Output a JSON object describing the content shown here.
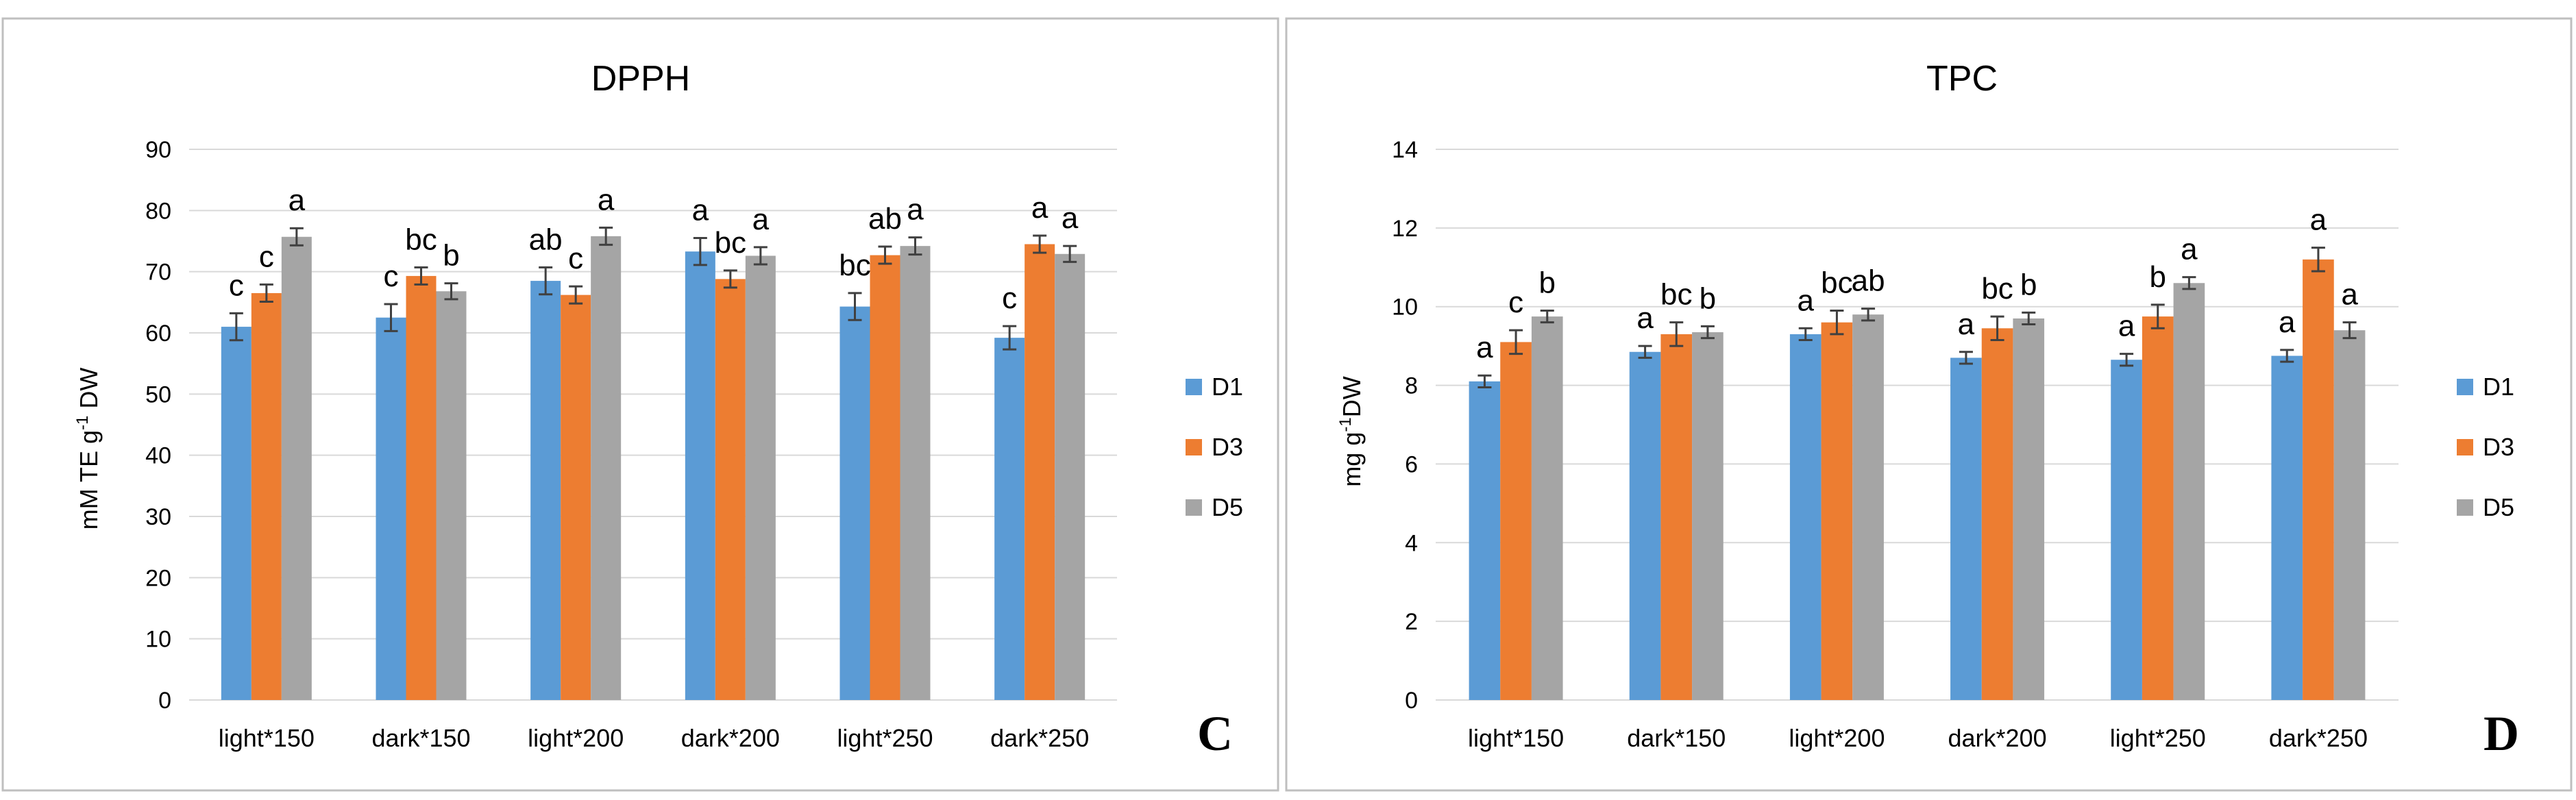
{
  "colors": {
    "D1": "#5b9bd5",
    "D3": "#ed7d31",
    "D5": "#a5a5a5",
    "axis": "#595959",
    "grid": "#d9d9d9",
    "text": "#000000",
    "border": "#bfbfbf",
    "errorbar": "#404040"
  },
  "chart_data": [
    {
      "type": "bar",
      "panel_id": "C",
      "title": "DPPH",
      "ylabel": "mM TE  g",
      "ylabel_sup": "-1",
      "ylabel_tail": " DW",
      "xlabel": "",
      "ylim": [
        0,
        90
      ],
      "ytick_step": 10,
      "yticks": [
        "0",
        "10",
        "20",
        "30",
        "40",
        "50",
        "60",
        "70",
        "80",
        "90"
      ],
      "grid": true,
      "legend_position": "right",
      "categories": [
        "light*150",
        "dark*150",
        "light*200",
        "dark*200",
        "light*250",
        "dark*250"
      ],
      "series": [
        {
          "name": "D1",
          "values": [
            61,
            62.5,
            68.5,
            73.3,
            64.3,
            59.2
          ],
          "errors": [
            2.2,
            2.2,
            2.2,
            2.2,
            2.2,
            1.9
          ],
          "labels": [
            "c",
            "c",
            "ab",
            "a",
            "bc",
            "c"
          ]
        },
        {
          "name": "D3",
          "values": [
            66.5,
            69.3,
            66.2,
            68.8,
            72.7,
            74.5
          ],
          "errors": [
            1.4,
            1.4,
            1.4,
            1.4,
            1.4,
            1.4
          ],
          "labels": [
            "c",
            "bc",
            "c",
            "bc",
            "ab",
            "a"
          ]
        },
        {
          "name": "D5",
          "values": [
            75.7,
            66.8,
            75.8,
            72.6,
            74.2,
            72.9
          ],
          "errors": [
            1.4,
            1.3,
            1.4,
            1.4,
            1.4,
            1.3
          ],
          "labels": [
            "a",
            "b",
            "a",
            "a",
            "a",
            "a"
          ]
        }
      ]
    },
    {
      "type": "bar",
      "panel_id": "D",
      "title": "TPC",
      "ylabel": "mg g",
      "ylabel_sup": "-1",
      "ylabel_tail": "DW",
      "xlabel": "",
      "ylim": [
        0,
        14
      ],
      "ytick_step": 2,
      "yticks": [
        "0",
        "2",
        "4",
        "6",
        "8",
        "10",
        "12",
        "14"
      ],
      "grid": true,
      "legend_position": "right",
      "categories": [
        "light*150",
        "dark*150",
        "light*200",
        "dark*200",
        "light*250",
        "dark*250"
      ],
      "series": [
        {
          "name": "D1",
          "values": [
            8.1,
            8.85,
            9.3,
            8.7,
            8.65,
            8.75
          ],
          "errors": [
            0.15,
            0.15,
            0.15,
            0.15,
            0.15,
            0.15
          ],
          "labels": [
            "a",
            "a",
            "a",
            "a",
            "a",
            "a"
          ]
        },
        {
          "name": "D3",
          "values": [
            9.1,
            9.3,
            9.6,
            9.45,
            9.75,
            11.2
          ],
          "errors": [
            0.3,
            0.3,
            0.3,
            0.3,
            0.3,
            0.3
          ],
          "labels": [
            "c",
            "bc",
            "bc",
            "bc",
            "b",
            "a"
          ]
        },
        {
          "name": "D5",
          "values": [
            9.75,
            9.35,
            9.8,
            9.7,
            10.6,
            9.4
          ],
          "errors": [
            0.15,
            0.15,
            0.15,
            0.15,
            0.15,
            0.2
          ],
          "labels": [
            "b",
            "b",
            "ab",
            "b",
            "a",
            "a"
          ]
        }
      ]
    }
  ]
}
